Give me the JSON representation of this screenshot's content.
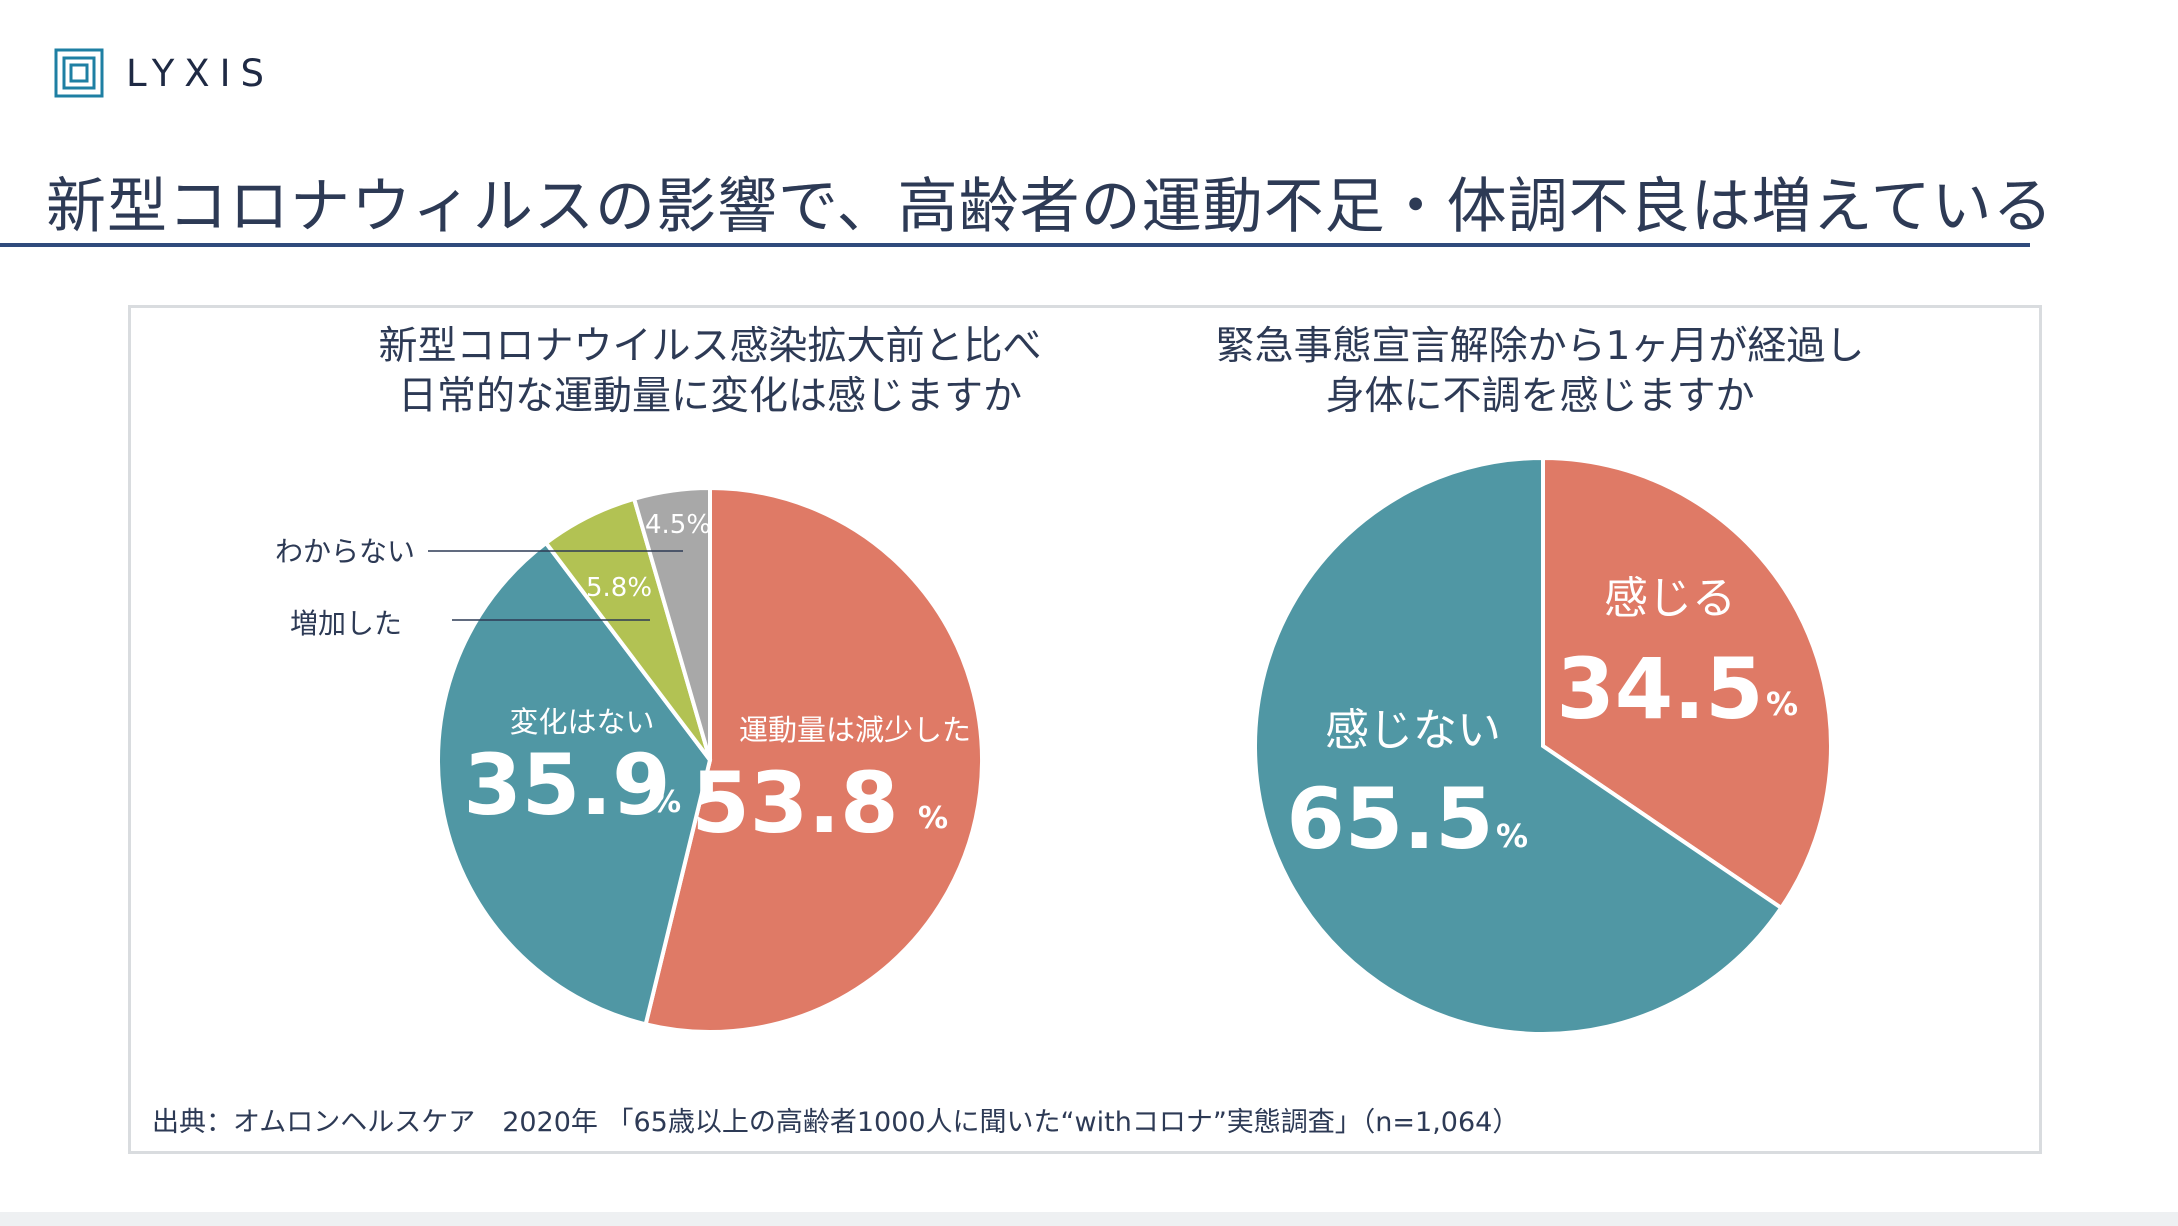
{
  "brand": {
    "name": "LYXIS",
    "color": "#1e7fa3"
  },
  "page_title": "新型コロナウィルスの影響で、高齢者の運動不足・体調不良は増えている",
  "source_note": "出典：オムロンヘルスケア　2020年 「65歳以上の高齢者1000人に聞いた“withコロナ”実態調査」（n=1,064）",
  "colors": {
    "coral": "#df7a66",
    "teal": "#5097a4",
    "green": "#b2c253",
    "gray": "#a8a8a8"
  },
  "chart_data": [
    {
      "type": "pie",
      "title_lines": [
        "新型コロナウイルス感染拡大前と比べ",
        "日常的な運動量に変化は感じますか"
      ],
      "unit": "%",
      "slices": [
        {
          "label": "運動量は減少した",
          "value": 53.8,
          "display": "53.8",
          "color": "#df7a66"
        },
        {
          "label": "変化はない",
          "value": 35.9,
          "display": "35.9",
          "color": "#5097a4"
        },
        {
          "label": "増加した",
          "value": 5.8,
          "display": "5.8%",
          "color": "#b2c253"
        },
        {
          "label": "わからない",
          "value": 4.5,
          "display": "4.5%",
          "color": "#a8a8a8"
        }
      ]
    },
    {
      "type": "pie",
      "title_lines": [
        "緊急事態宣言解除から1ヶ月が経過し",
        "身体に不調を感じますか"
      ],
      "unit": "%",
      "slices": [
        {
          "label": "感じる",
          "value": 34.5,
          "display": "34.5",
          "color": "#df7a66"
        },
        {
          "label": "感じない",
          "value": 65.5,
          "display": "65.5",
          "color": "#5097a4"
        }
      ]
    }
  ]
}
